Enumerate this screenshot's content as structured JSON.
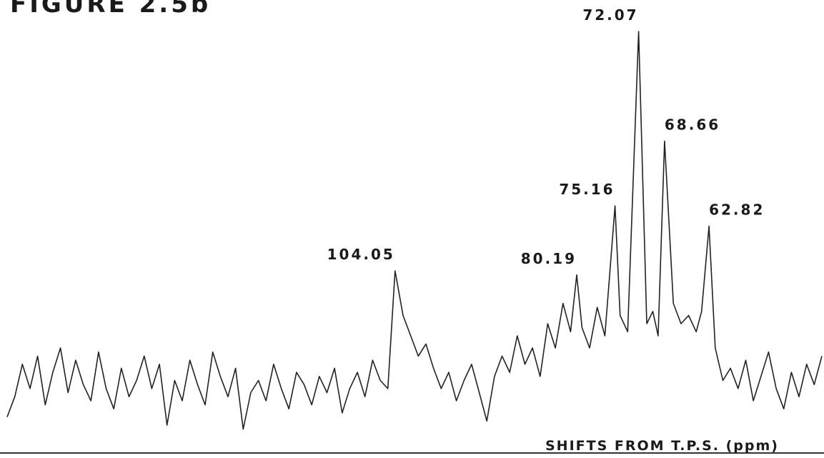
{
  "chart_data": {
    "type": "line",
    "title": "FIGURE 2.5b",
    "xlabel": "SHIFTS FROM T.P.S. (ppm)",
    "ylabel": "",
    "x_reversed": true,
    "xlim": [
      155,
      48
    ],
    "ylim": [
      0,
      1
    ],
    "grid": false,
    "legend": "none",
    "line_color": "#222222",
    "peaks": [
      {
        "label": "104.05",
        "x": 104.05,
        "height": 0.41
      },
      {
        "label": "80.19",
        "x": 80.19,
        "height": 0.4
      },
      {
        "label": "75.16",
        "x": 75.16,
        "height": 0.57
      },
      {
        "label": "72.07",
        "x": 72.07,
        "height": 1.0
      },
      {
        "label": "68.66",
        "x": 68.66,
        "height": 0.73
      },
      {
        "label": "62.82",
        "x": 62.82,
        "height": 0.52
      }
    ],
    "series": [
      {
        "x": [
          155,
          154,
          153,
          152,
          151,
          150,
          149,
          148,
          147,
          146,
          145,
          144,
          143,
          142,
          141,
          140,
          139,
          138,
          137,
          136,
          135,
          134,
          133,
          132,
          131,
          130,
          129,
          128,
          127,
          126,
          125,
          124,
          123,
          122,
          121,
          120,
          119,
          118,
          117,
          116,
          115,
          114,
          113,
          112,
          111,
          110,
          109,
          108,
          107,
          106,
          105,
          104.05,
          103,
          102,
          101,
          100,
          99,
          98,
          97,
          96,
          95,
          94,
          93,
          92,
          91,
          90,
          89,
          88,
          87,
          86,
          85,
          84,
          83,
          82,
          81,
          80.19,
          79.5,
          78.5,
          77.5,
          76.5,
          75.16,
          74.5,
          73.5,
          72.07,
          71,
          70.2,
          69.5,
          68.66,
          67.5,
          66.5,
          65.5,
          64.5,
          63.8,
          62.82,
          62,
          61,
          60,
          59,
          58,
          57,
          56,
          55,
          54,
          53,
          52,
          51,
          50,
          49,
          48
        ],
        "y": [
          0.05,
          0.1,
          0.18,
          0.12,
          0.2,
          0.08,
          0.16,
          0.22,
          0.11,
          0.19,
          0.13,
          0.09,
          0.21,
          0.12,
          0.07,
          0.17,
          0.1,
          0.14,
          0.2,
          0.12,
          0.18,
          0.03,
          0.14,
          0.09,
          0.19,
          0.13,
          0.08,
          0.21,
          0.15,
          0.1,
          0.17,
          0.02,
          0.11,
          0.14,
          0.09,
          0.18,
          0.12,
          0.07,
          0.16,
          0.13,
          0.08,
          0.15,
          0.11,
          0.17,
          0.06,
          0.12,
          0.16,
          0.1,
          0.19,
          0.14,
          0.12,
          0.41,
          0.3,
          0.25,
          0.2,
          0.23,
          0.17,
          0.12,
          0.16,
          0.09,
          0.14,
          0.18,
          0.11,
          0.04,
          0.15,
          0.2,
          0.16,
          0.25,
          0.18,
          0.22,
          0.15,
          0.28,
          0.22,
          0.33,
          0.26,
          0.4,
          0.27,
          0.22,
          0.32,
          0.25,
          0.57,
          0.3,
          0.26,
          1.0,
          0.28,
          0.31,
          0.25,
          0.73,
          0.33,
          0.28,
          0.3,
          0.26,
          0.31,
          0.52,
          0.22,
          0.14,
          0.17,
          0.12,
          0.19,
          0.09,
          0.15,
          0.21,
          0.12,
          0.07,
          0.16,
          0.1,
          0.18,
          0.13,
          0.2
        ]
      }
    ]
  }
}
